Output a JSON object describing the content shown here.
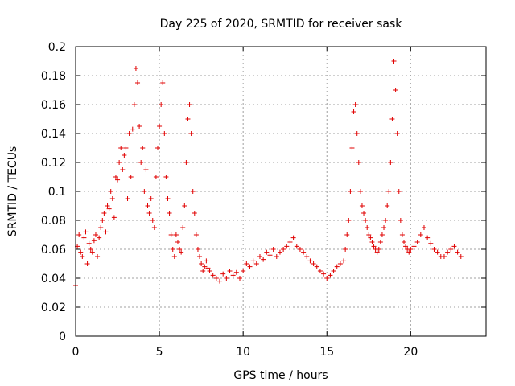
{
  "chart_data": {
    "type": "scatter",
    "title": "Day 225 of 2020, SRMTID for receiver sask",
    "xlabel": "GPS time / hours",
    "ylabel": "SRMTID / TECUs",
    "xlim": [
      0,
      24.5
    ],
    "ylim": [
      0,
      0.2
    ],
    "xticks": [
      0,
      5,
      10,
      15,
      20
    ],
    "xtick_labels": [
      "0",
      "5",
      "10",
      "15",
      "20"
    ],
    "yticks": [
      0,
      0.02,
      0.04,
      0.06,
      0.08,
      0.1,
      0.12,
      0.14,
      0.16,
      0.18,
      0.2
    ],
    "ytick_labels": [
      "0",
      "0.02",
      "0.04",
      "0.06",
      "0.08",
      "0.1",
      "0.12",
      "0.14",
      "0.16",
      "0.18",
      "0.2"
    ],
    "grid": true,
    "marker": "+",
    "color": "#e00000",
    "series": [
      {
        "name": "SRMTID",
        "x": [
          0.0,
          0.1,
          0.2,
          0.3,
          0.4,
          0.5,
          0.6,
          0.7,
          0.8,
          0.9,
          1.0,
          1.1,
          1.2,
          1.3,
          1.4,
          1.5,
          1.6,
          1.7,
          1.8,
          1.9,
          2.0,
          2.1,
          2.2,
          2.3,
          2.4,
          2.5,
          2.6,
          2.7,
          2.8,
          2.9,
          3.0,
          3.1,
          3.2,
          3.3,
          3.4,
          3.5,
          3.6,
          3.7,
          3.8,
          3.9,
          4.0,
          4.1,
          4.2,
          4.3,
          4.4,
          4.5,
          4.6,
          4.7,
          4.8,
          4.9,
          5.0,
          5.1,
          5.2,
          5.3,
          5.4,
          5.5,
          5.6,
          5.7,
          5.8,
          5.9,
          6.0,
          6.1,
          6.2,
          6.3,
          6.4,
          6.5,
          6.6,
          6.7,
          6.8,
          6.9,
          7.0,
          7.1,
          7.2,
          7.3,
          7.4,
          7.5,
          7.6,
          7.7,
          7.8,
          7.9,
          8.0,
          8.2,
          8.4,
          8.6,
          8.8,
          9.0,
          9.2,
          9.4,
          9.6,
          9.8,
          10.0,
          10.2,
          10.4,
          10.6,
          10.8,
          11.0,
          11.2,
          11.4,
          11.6,
          11.8,
          12.0,
          12.2,
          12.4,
          12.6,
          12.8,
          13.0,
          13.2,
          13.4,
          13.6,
          13.8,
          14.0,
          14.2,
          14.4,
          14.6,
          14.8,
          15.0,
          15.2,
          15.4,
          15.6,
          15.8,
          16.0,
          16.1,
          16.2,
          16.3,
          16.4,
          16.5,
          16.6,
          16.7,
          16.8,
          16.9,
          17.0,
          17.1,
          17.2,
          17.3,
          17.4,
          17.5,
          17.6,
          17.7,
          17.8,
          17.9,
          18.0,
          18.1,
          18.2,
          18.3,
          18.4,
          18.5,
          18.6,
          18.7,
          18.8,
          18.9,
          19.0,
          19.1,
          19.2,
          19.3,
          19.4,
          19.5,
          19.6,
          19.7,
          19.8,
          19.9,
          20.0,
          20.2,
          20.4,
          20.6,
          20.8,
          21.0,
          21.2,
          21.4,
          21.6,
          21.8,
          22.0,
          22.2,
          22.4,
          22.6,
          22.8,
          23.0
        ],
        "y": [
          0.035,
          0.062,
          0.07,
          0.058,
          0.055,
          0.068,
          0.072,
          0.05,
          0.064,
          0.06,
          0.058,
          0.066,
          0.07,
          0.055,
          0.068,
          0.075,
          0.08,
          0.085,
          0.072,
          0.09,
          0.088,
          0.1,
          0.095,
          0.082,
          0.11,
          0.108,
          0.12,
          0.13,
          0.115,
          0.125,
          0.13,
          0.095,
          0.14,
          0.11,
          0.143,
          0.16,
          0.185,
          0.175,
          0.145,
          0.12,
          0.13,
          0.1,
          0.115,
          0.09,
          0.085,
          0.095,
          0.08,
          0.075,
          0.11,
          0.13,
          0.145,
          0.16,
          0.175,
          0.14,
          0.11,
          0.095,
          0.085,
          0.07,
          0.06,
          0.055,
          0.07,
          0.065,
          0.06,
          0.058,
          0.075,
          0.09,
          0.12,
          0.15,
          0.16,
          0.14,
          0.1,
          0.085,
          0.07,
          0.06,
          0.055,
          0.05,
          0.045,
          0.048,
          0.052,
          0.047,
          0.045,
          0.042,
          0.04,
          0.038,
          0.043,
          0.04,
          0.045,
          0.042,
          0.044,
          0.04,
          0.045,
          0.05,
          0.048,
          0.052,
          0.05,
          0.055,
          0.053,
          0.058,
          0.056,
          0.06,
          0.055,
          0.058,
          0.06,
          0.062,
          0.065,
          0.068,
          0.062,
          0.06,
          0.058,
          0.055,
          0.052,
          0.05,
          0.048,
          0.045,
          0.043,
          0.04,
          0.042,
          0.045,
          0.048,
          0.05,
          0.052,
          0.06,
          0.07,
          0.08,
          0.1,
          0.13,
          0.155,
          0.16,
          0.14,
          0.12,
          0.1,
          0.09,
          0.085,
          0.08,
          0.075,
          0.07,
          0.068,
          0.065,
          0.062,
          0.06,
          0.058,
          0.06,
          0.065,
          0.07,
          0.075,
          0.08,
          0.09,
          0.1,
          0.12,
          0.15,
          0.19,
          0.17,
          0.14,
          0.1,
          0.08,
          0.07,
          0.065,
          0.062,
          0.06,
          0.058,
          0.06,
          0.062,
          0.065,
          0.07,
          0.075,
          0.068,
          0.064,
          0.06,
          0.058,
          0.055,
          0.055,
          0.058,
          0.06,
          0.062,
          0.058,
          0.055
        ]
      }
    ]
  }
}
